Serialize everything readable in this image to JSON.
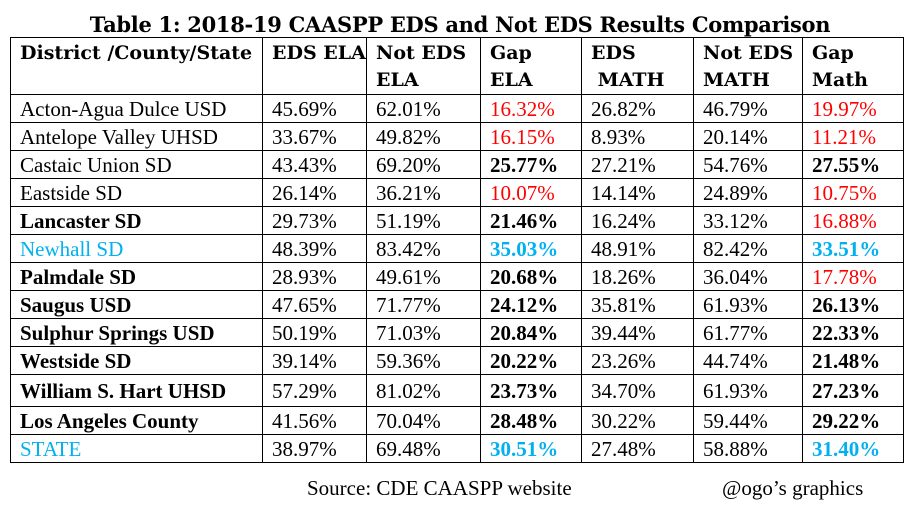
{
  "title": "Table 1: 2018-19 CAASPP EDS and Not EDS Results Comparison",
  "colors": {
    "red": "#ff0000",
    "blue": "#00b0f0",
    "black": "#000000"
  },
  "chart_data": {
    "type": "table",
    "columns": [
      "District /County/State",
      "EDS ELA",
      "Not EDS ELA",
      "Gap ELA",
      "EDS MATH",
      "Not EDS MATH",
      "Gap Math"
    ],
    "rows": [
      {
        "name": "Acton-Agua Dulce USD",
        "name_style": "normal",
        "cells": [
          [
            "45.69%",
            "normal"
          ],
          [
            "62.01%",
            "normal"
          ],
          [
            "16.32%",
            "red"
          ],
          [
            "26.82%",
            "normal"
          ],
          [
            "46.79%",
            "normal"
          ],
          [
            "19.97%",
            "red"
          ]
        ]
      },
      {
        "name": "Antelope Valley UHSD",
        "name_style": "normal",
        "cells": [
          [
            "33.67%",
            "normal"
          ],
          [
            "49.82%",
            "normal"
          ],
          [
            "16.15%",
            "red"
          ],
          [
            "8.93%",
            "normal"
          ],
          [
            "20.14%",
            "normal"
          ],
          [
            "11.21%",
            "red"
          ]
        ]
      },
      {
        "name": "Castaic Union SD",
        "name_style": "normal",
        "cells": [
          [
            "43.43%",
            "normal"
          ],
          [
            "69.20%",
            "normal"
          ],
          [
            "25.77%",
            "bold"
          ],
          [
            "27.21%",
            "normal"
          ],
          [
            "54.76%",
            "normal"
          ],
          [
            "27.55%",
            "bold"
          ]
        ]
      },
      {
        "name": "Eastside SD",
        "name_style": "normal",
        "cells": [
          [
            "26.14%",
            "normal"
          ],
          [
            "36.21%",
            "normal"
          ],
          [
            "10.07%",
            "red"
          ],
          [
            "14.14%",
            "normal"
          ],
          [
            "24.89%",
            "normal"
          ],
          [
            "10.75%",
            "red"
          ]
        ]
      },
      {
        "name": "Lancaster SD",
        "name_style": "bold",
        "cells": [
          [
            "29.73%",
            "normal"
          ],
          [
            "51.19%",
            "normal"
          ],
          [
            "21.46%",
            "bold"
          ],
          [
            "16.24%",
            "normal"
          ],
          [
            "33.12%",
            "normal"
          ],
          [
            "16.88%",
            "red"
          ]
        ]
      },
      {
        "name": "Newhall SD",
        "name_style": "blue",
        "cells": [
          [
            "48.39%",
            "normal"
          ],
          [
            "83.42%",
            "normal"
          ],
          [
            "35.03%",
            "blue-bold"
          ],
          [
            "48.91%",
            "normal"
          ],
          [
            "82.42%",
            "normal"
          ],
          [
            "33.51%",
            "blue-bold"
          ]
        ]
      },
      {
        "name": "Palmdale SD",
        "name_style": "bold",
        "cells": [
          [
            "28.93%",
            "normal"
          ],
          [
            "49.61%",
            "normal"
          ],
          [
            "20.68%",
            "bold"
          ],
          [
            "18.26%",
            "normal"
          ],
          [
            "36.04%",
            "normal"
          ],
          [
            "17.78%",
            "red"
          ]
        ]
      },
      {
        "name": "Saugus USD",
        "name_style": "bold",
        "cells": [
          [
            "47.65%",
            "normal"
          ],
          [
            "71.77%",
            "normal"
          ],
          [
            "24.12%",
            "bold"
          ],
          [
            "35.81%",
            "normal"
          ],
          [
            "61.93%",
            "normal"
          ],
          [
            "26.13%",
            "bold"
          ]
        ]
      },
      {
        "name": "Sulphur Springs USD",
        "name_style": "bold",
        "cells": [
          [
            "50.19%",
            "normal"
          ],
          [
            "71.03%",
            "normal"
          ],
          [
            "20.84%",
            "bold"
          ],
          [
            "39.44%",
            "normal"
          ],
          [
            "61.77%",
            "normal"
          ],
          [
            "22.33%",
            "bold"
          ]
        ]
      },
      {
        "name": "Westside SD",
        "name_style": "bold",
        "cells": [
          [
            "39.14%",
            "normal"
          ],
          [
            "59.36%",
            "normal"
          ],
          [
            "20.22%",
            "bold"
          ],
          [
            "23.26%",
            "normal"
          ],
          [
            "44.74%",
            "normal"
          ],
          [
            "21.48%",
            "bold"
          ]
        ]
      },
      {
        "name": "William S. Hart UHSD",
        "name_style": "bold",
        "cells": [
          [
            "57.29%",
            "normal"
          ],
          [
            "81.02%",
            "normal"
          ],
          [
            "23.73%",
            "bold"
          ],
          [
            "34.70%",
            "normal"
          ],
          [
            "61.93%",
            "normal"
          ],
          [
            "27.23%",
            "bold"
          ]
        ]
      },
      {
        "name": "Los Angeles County",
        "name_style": "bold",
        "cells": [
          [
            "41.56%",
            "normal"
          ],
          [
            "70.04%",
            "normal"
          ],
          [
            "28.48%",
            "bold"
          ],
          [
            "30.22%",
            "normal"
          ],
          [
            "59.44%",
            "normal"
          ],
          [
            "29.22%",
            "bold"
          ]
        ]
      },
      {
        "name": "STATE",
        "name_style": "blue",
        "cells": [
          [
            "38.97%",
            "normal"
          ],
          [
            "69.48%",
            "normal"
          ],
          [
            "30.51%",
            "blue-bold"
          ],
          [
            "27.48%",
            "normal"
          ],
          [
            "58.88%",
            "normal"
          ],
          [
            "31.40%",
            "blue-bold"
          ]
        ]
      }
    ]
  },
  "header_lines": [
    [
      "District /County/State",
      ""
    ],
    [
      "EDS ELA",
      ""
    ],
    [
      "Not EDS",
      "ELA"
    ],
    [
      "Gap",
      "ELA"
    ],
    [
      "EDS",
      " MATH"
    ],
    [
      "Not EDS",
      "MATH"
    ],
    [
      "Gap",
      "Math"
    ]
  ],
  "footer": {
    "source": "Source: CDE CAASPP website",
    "credit": "@ogo’s graphics"
  }
}
